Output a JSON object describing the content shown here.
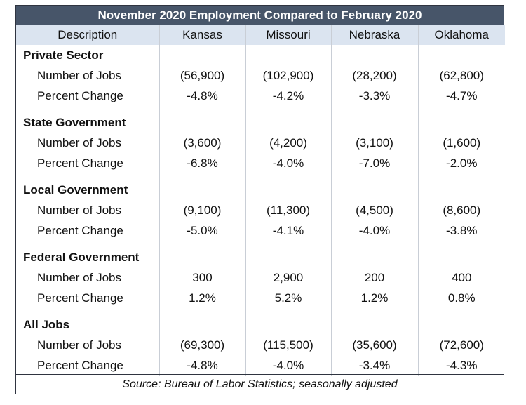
{
  "title": "November 2020 Employment Compared to February 2020",
  "columns": [
    "Description",
    "Kansas",
    "Missouri",
    "Nebraska",
    "Oklahoma"
  ],
  "sections": [
    {
      "name": "Private Sector",
      "rows": [
        {
          "label": "Number of Jobs",
          "values": [
            "(56,900)",
            "(102,900)",
            "(28,200)",
            "(62,800)"
          ]
        },
        {
          "label": "Percent Change",
          "values": [
            "-4.8%",
            "-4.2%",
            "-3.3%",
            "-4.7%"
          ]
        }
      ]
    },
    {
      "name": "State Government",
      "rows": [
        {
          "label": "Number of Jobs",
          "values": [
            "(3,600)",
            "(4,200)",
            "(3,100)",
            "(1,600)"
          ]
        },
        {
          "label": "Percent Change",
          "values": [
            "-6.8%",
            "-4.0%",
            "-7.0%",
            "-2.0%"
          ]
        }
      ]
    },
    {
      "name": "Local Government",
      "rows": [
        {
          "label": "Number of Jobs",
          "values": [
            "(9,100)",
            "(11,300)",
            "(4,500)",
            "(8,600)"
          ]
        },
        {
          "label": "Percent Change",
          "values": [
            "-5.0%",
            "-4.1%",
            "-4.0%",
            "-3.8%"
          ]
        }
      ]
    },
    {
      "name": "Federal Government",
      "rows": [
        {
          "label": "Number of Jobs",
          "values": [
            "300",
            "2,900",
            "200",
            "400"
          ]
        },
        {
          "label": "Percent Change",
          "values": [
            "1.2%",
            "5.2%",
            "1.2%",
            "0.8%"
          ]
        }
      ]
    },
    {
      "name": "All Jobs",
      "rows": [
        {
          "label": "Number of Jobs",
          "values": [
            "(69,300)",
            "(115,500)",
            "(35,600)",
            "(72,600)"
          ]
        },
        {
          "label": "Percent Change",
          "values": [
            "-4.8%",
            "-4.0%",
            "-3.4%",
            "-4.3%"
          ]
        }
      ]
    }
  ],
  "source": "Source: Bureau of Labor Statistics; seasonally adjusted",
  "colors": {
    "title_bg": "#475569",
    "header_bg": "#dbe4f0",
    "border": "#2f3440"
  }
}
